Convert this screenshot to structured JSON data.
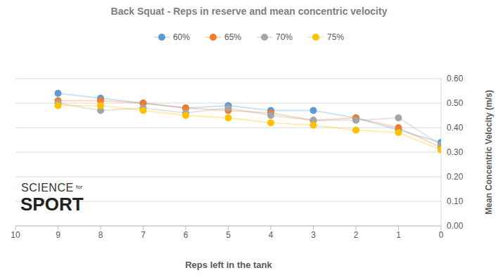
{
  "chart_data": {
    "type": "line",
    "title": "Back Squat - Reps in reserve and mean concentric velocity",
    "x_label": "Reps left in the tank",
    "y_label": "Mean Concentric Velocity (m/s)",
    "annotations": [
      "SCIENCE",
      "for",
      "SPORT"
    ],
    "x": [
      9,
      8,
      7,
      6,
      5,
      4,
      3,
      2,
      1,
      0
    ],
    "series": [
      {
        "name": "60%",
        "color": "#5B9BD5",
        "values": [
          0.54,
          0.52,
          0.5,
          0.48,
          0.49,
          0.47,
          0.47,
          0.44,
          0.39,
          0.34
        ]
      },
      {
        "name": "65%",
        "color": "#ED7D31",
        "values": [
          0.51,
          0.51,
          0.5,
          0.48,
          0.47,
          0.46,
          0.43,
          0.44,
          0.4,
          0.32
        ]
      },
      {
        "name": "70%",
        "color": "#A5A5A5",
        "values": [
          0.5,
          0.47,
          0.48,
          0.46,
          0.48,
          0.45,
          0.43,
          0.43,
          0.44,
          0.33
        ]
      },
      {
        "name": "75%",
        "color": "#FFC000",
        "values": [
          0.49,
          0.49,
          0.47,
          0.45,
          0.44,
          0.42,
          0.41,
          0.39,
          0.38,
          0.31
        ]
      }
    ],
    "xlim": [
      10,
      0
    ],
    "xticks": [
      10,
      9,
      8,
      7,
      6,
      5,
      4,
      3,
      2,
      1,
      0
    ],
    "ylim": [
      0,
      0.6
    ],
    "yticks": [
      {
        "value": 0,
        "label": "0.00"
      },
      {
        "value": 0.1,
        "label": "0.10"
      },
      {
        "value": 0.2,
        "label": "0.20"
      },
      {
        "value": 0.3,
        "label": "0.30"
      },
      {
        "value": 0.4,
        "label": "0.40"
      },
      {
        "value": 0.5,
        "label": "0.50"
      },
      {
        "value": 0.6,
        "label": "0.60"
      }
    ],
    "grid": true,
    "legend": "top",
    "marker": "circle"
  }
}
